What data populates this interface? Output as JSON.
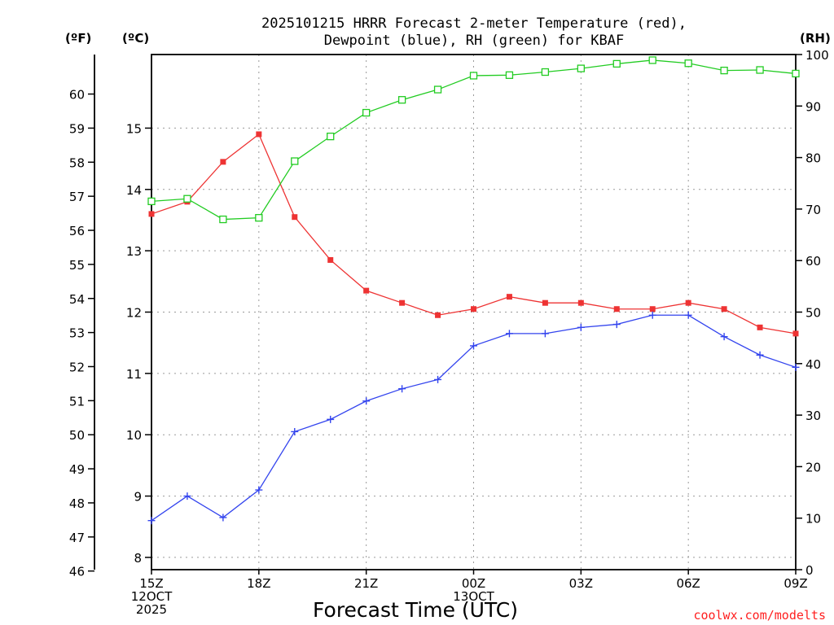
{
  "chart_data": {
    "type": "line",
    "title_line1": "2025101215 HRRR Forecast 2-meter Temperature (red),",
    "title_line2": "Dewpoint (blue), RH (green) for KBAF",
    "xlabel": "Forecast Time (UTC)",
    "credit": "coolwx.com/modelts",
    "unit_f": "(ºF)",
    "unit_c": "(ºC)",
    "unit_rh": "(RH)",
    "x_hours": [
      0,
      1,
      2,
      3,
      4,
      5,
      6,
      7,
      8,
      9,
      10,
      11,
      12,
      13,
      14,
      15,
      16,
      17,
      18
    ],
    "xlim_hours": [
      0,
      18
    ],
    "x_ticks": [
      {
        "h": 0,
        "lines": [
          "15Z",
          "12OCT",
          "2025"
        ]
      },
      {
        "h": 3,
        "lines": [
          "18Z"
        ]
      },
      {
        "h": 6,
        "lines": [
          "21Z"
        ]
      },
      {
        "h": 9,
        "lines": [
          "00Z",
          "13OCT"
        ]
      },
      {
        "h": 12,
        "lines": [
          "03Z"
        ]
      },
      {
        "h": 15,
        "lines": [
          "06Z"
        ]
      },
      {
        "h": 18,
        "lines": [
          "09Z"
        ]
      }
    ],
    "ylim_c": [
      7.8,
      16.2
    ],
    "c_ticks": [
      8,
      9,
      10,
      11,
      12,
      13,
      14,
      15
    ],
    "f_ticks": [
      46,
      47,
      48,
      49,
      50,
      51,
      52,
      53,
      54,
      55,
      56,
      57,
      58,
      59,
      60
    ],
    "ylim_rh": [
      0,
      100
    ],
    "rh_ticks": [
      0,
      10,
      20,
      30,
      40,
      50,
      60,
      70,
      80,
      90,
      100
    ],
    "series": [
      {
        "name": "Temperature",
        "units": "ºC",
        "color": "#ee3333",
        "marker": "filled-square",
        "values": [
          13.6,
          13.8,
          14.45,
          14.9,
          13.55,
          12.85,
          12.35,
          12.15,
          11.95,
          12.05,
          12.25,
          12.15,
          12.15,
          12.05,
          12.05,
          12.15,
          12.05,
          11.75,
          11.65
        ]
      },
      {
        "name": "Dewpoint",
        "units": "ºC",
        "color": "#3344ee",
        "marker": "plus",
        "values": [
          8.6,
          9.0,
          8.65,
          9.1,
          10.05,
          10.25,
          10.55,
          10.75,
          10.9,
          11.45,
          11.65,
          11.65,
          11.75,
          11.8,
          11.95,
          11.95,
          11.6,
          11.3,
          11.1
        ]
      },
      {
        "name": "RH",
        "units": "%",
        "color": "#22cc22",
        "marker": "open-square",
        "values": [
          71.5,
          72.0,
          68.0,
          68.3,
          79.3,
          84.1,
          88.7,
          91.2,
          93.2,
          95.9,
          96.0,
          96.6,
          97.3,
          98.2,
          98.9,
          98.3,
          96.9,
          97.0,
          96.3
        ]
      }
    ]
  }
}
